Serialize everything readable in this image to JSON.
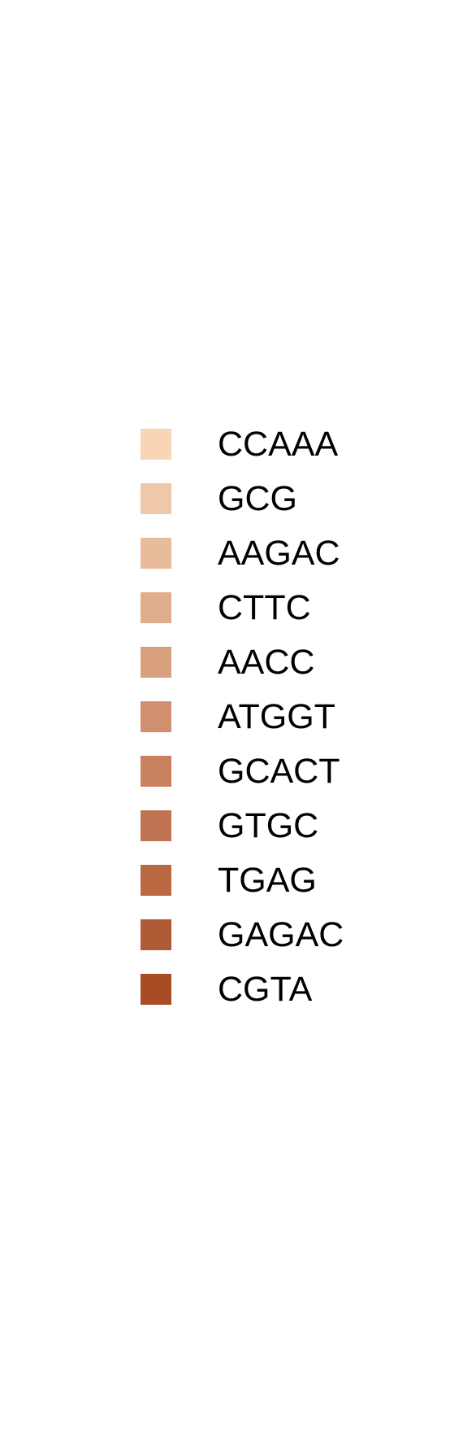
{
  "chart_data": {
    "type": "bar",
    "legend": {
      "placement": "center",
      "entries": [
        {
          "label": "CCAAA",
          "color": "#f8d5b5"
        },
        {
          "label": "GCG",
          "color": "#efc8a9"
        },
        {
          "label": "AAGAC",
          "color": "#e8bc9a"
        },
        {
          "label": "CTTC",
          "color": "#e0ae8d"
        },
        {
          "label": "AACC",
          "color": "#d8a07e"
        },
        {
          "label": "ATGGT",
          "color": "#d09070"
        },
        {
          "label": "GCACT",
          "color": "#c8825f"
        },
        {
          "label": "GTGC",
          "color": "#c07452"
        },
        {
          "label": "TGAG",
          "color": "#b96842"
        },
        {
          "label": "GAGAC",
          "color": "#b05a36"
        },
        {
          "label": "CGTA",
          "color": "#a84c25"
        }
      ]
    }
  }
}
